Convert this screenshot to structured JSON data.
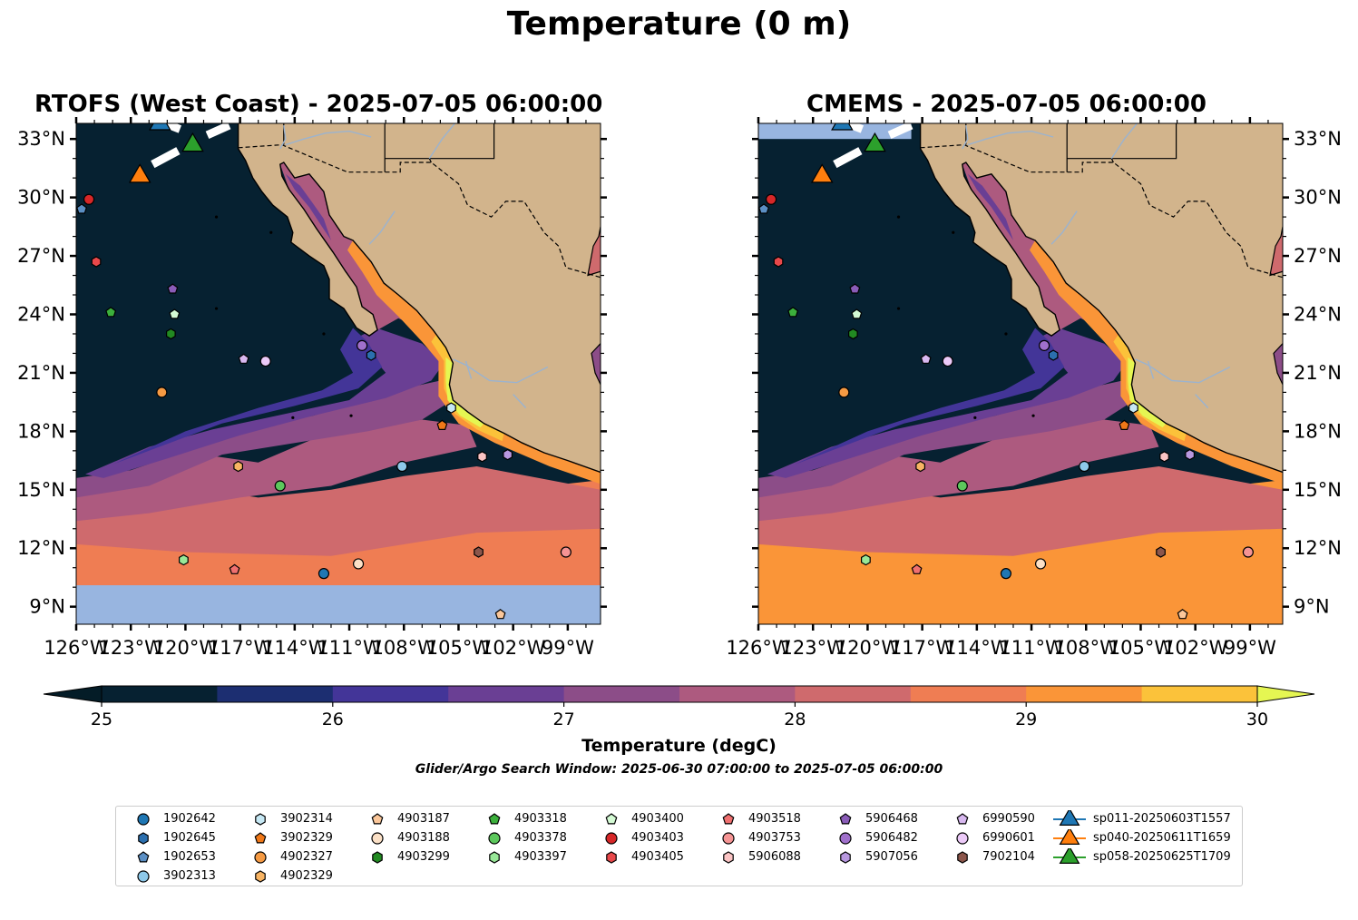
{
  "title": "Temperature (0 m)",
  "panels": [
    {
      "title": "RTOFS (West Coast) - 2025-07-05 06:00:00",
      "lat_tick_side": "left"
    },
    {
      "title": "CMEMS - 2025-07-05 06:00:00",
      "lat_tick_side": "right"
    }
  ],
  "map_extent": {
    "lon_min": -126,
    "lon_max": -97.2,
    "lat_min": 8.1,
    "lat_max": 33.8
  },
  "lon_ticks": [
    {
      "value": -126,
      "label": "126°W"
    },
    {
      "value": -123,
      "label": "123°W"
    },
    {
      "value": -120,
      "label": "120°W"
    },
    {
      "value": -117,
      "label": "117°W"
    },
    {
      "value": -114,
      "label": "114°W"
    },
    {
      "value": -111,
      "label": "111°W"
    },
    {
      "value": -108,
      "label": "108°W"
    },
    {
      "value": -105,
      "label": "105°W"
    },
    {
      "value": -102,
      "label": "102°W"
    },
    {
      "value": -99,
      "label": "99°W"
    }
  ],
  "lat_ticks": [
    {
      "value": 33,
      "label": "33°N"
    },
    {
      "value": 30,
      "label": "30°N"
    },
    {
      "value": 27,
      "label": "27°N"
    },
    {
      "value": 24,
      "label": "24°N"
    },
    {
      "value": 21,
      "label": "21°N"
    },
    {
      "value": 18,
      "label": "18°N"
    },
    {
      "value": 15,
      "label": "15°N"
    },
    {
      "value": 12,
      "label": "12°N"
    },
    {
      "value": 9,
      "label": "9°N"
    }
  ],
  "colorbar": {
    "label": "Temperature (degC)",
    "min": 25,
    "max": 30,
    "step": 0.5,
    "tick_values": [
      25,
      26,
      27,
      28,
      29,
      30
    ],
    "tick_labels": [
      "25",
      "26",
      "27",
      "28",
      "29",
      "30"
    ],
    "colors": [
      "#062131",
      "#1c2e71",
      "#433598",
      "#6a3f94",
      "#8c4d88",
      "#ad5a7f",
      "#cf6a6d",
      "#ef7d53",
      "#fa9538",
      "#fbc23a"
    ],
    "under_color": "#041c27",
    "over_color": "#e5f652"
  },
  "search_window": "Glider/Argo Search Window: 2025-06-30 07:00:00 to 2025-07-05 06:00:00",
  "colors": {
    "land": "#d2b48c",
    "water_nodata": "#98b5e0",
    "rivers": "#9bb3cf"
  },
  "platforms": [
    {
      "id": "1902642",
      "marker": "circle",
      "color": "#1f77b4",
      "lon": -112.4,
      "lat": 10.7
    },
    {
      "id": "1902645",
      "marker": "hexagon",
      "color": "#2b6fae",
      "lon": -109.8,
      "lat": 21.9
    },
    {
      "id": "1902653",
      "marker": "pentagon",
      "color": "#5b8fc4",
      "lon": -125.7,
      "lat": 29.4
    },
    {
      "id": "3902313",
      "marker": "circle",
      "color": "#8ec9ea",
      "lon": -108.1,
      "lat": 16.2
    },
    {
      "id": "3902314",
      "marker": "hexagon",
      "color": "#c6e8f4",
      "lon": -105.4,
      "lat": 19.2
    },
    {
      "id": "3902329",
      "marker": "pentagon",
      "color": "#f07818",
      "lon": -105.9,
      "lat": 18.3
    },
    {
      "id": "4902327",
      "marker": "circle",
      "color": "#f59a43",
      "lon": -121.3,
      "lat": 20.0
    },
    {
      "id": "4902329",
      "marker": "hexagon",
      "color": "#f8b463",
      "lon": -117.1,
      "lat": 16.2
    },
    {
      "id": "4903187",
      "marker": "pentagon",
      "color": "#fbc79a",
      "lon": -102.7,
      "lat": 8.6
    },
    {
      "id": "4903188",
      "marker": "circle",
      "color": "#fbe0c6",
      "lon": -110.5,
      "lat": 11.2
    },
    {
      "id": "4903299",
      "marker": "hexagon",
      "color": "#228a22",
      "lon": -120.8,
      "lat": 23.0
    },
    {
      "id": "4903318",
      "marker": "pentagon",
      "color": "#3cb03c",
      "lon": -124.1,
      "lat": 24.1
    },
    {
      "id": "4903378",
      "marker": "circle",
      "color": "#5cc85c",
      "lon": -114.8,
      "lat": 15.2
    },
    {
      "id": "4903397",
      "marker": "hexagon",
      "color": "#98e898",
      "lon": -120.1,
      "lat": 11.4
    },
    {
      "id": "4903400",
      "marker": "pentagon",
      "color": "#d4fad4",
      "lon": -120.6,
      "lat": 24.0
    },
    {
      "id": "4903403",
      "marker": "circle",
      "color": "#d62728",
      "lon": -125.3,
      "lat": 29.9
    },
    {
      "id": "4903405",
      "marker": "hexagon",
      "color": "#e8484a",
      "lon": -124.9,
      "lat": 26.7
    },
    {
      "id": "4903518",
      "marker": "pentagon",
      "color": "#f07070",
      "lon": -117.3,
      "lat": 10.9
    },
    {
      "id": "4903753",
      "marker": "circle",
      "color": "#f59494",
      "lon": -99.1,
      "lat": 11.8
    },
    {
      "id": "5906088",
      "marker": "hexagon",
      "color": "#fbc4c4",
      "lon": -103.7,
      "lat": 16.7
    },
    {
      "id": "5906468",
      "marker": "pentagon",
      "color": "#8a5cb8",
      "lon": -120.7,
      "lat": 25.3
    },
    {
      "id": "5906482",
      "marker": "circle",
      "color": "#a070cc",
      "lon": -110.3,
      "lat": 22.4
    },
    {
      "id": "5907056",
      "marker": "hexagon",
      "color": "#b898e0",
      "lon": -102.3,
      "lat": 16.8
    },
    {
      "id": "6990590",
      "marker": "pentagon",
      "color": "#d8b8f0",
      "lon": -116.8,
      "lat": 21.7
    },
    {
      "id": "6990601",
      "marker": "circle",
      "color": "#eccaf8",
      "lon": -115.6,
      "lat": 21.6
    },
    {
      "id": "7902104",
      "marker": "hexagon",
      "color": "#8c564b",
      "lon": -103.9,
      "lat": 11.8
    }
  ],
  "gliders": [
    {
      "id": "sp011-20250603T1557",
      "marker": "triangle",
      "color": "#1f77b4",
      "lon": -121.4,
      "lat": 33.9
    },
    {
      "id": "sp040-20250611T1659",
      "marker": "triangle",
      "color": "#ff7f0e",
      "lon": -122.5,
      "lat": 31.2
    },
    {
      "id": "sp058-20250625T1709",
      "marker": "triangle",
      "color": "#2ca02c",
      "lon": -119.6,
      "lat": 32.8
    }
  ]
}
